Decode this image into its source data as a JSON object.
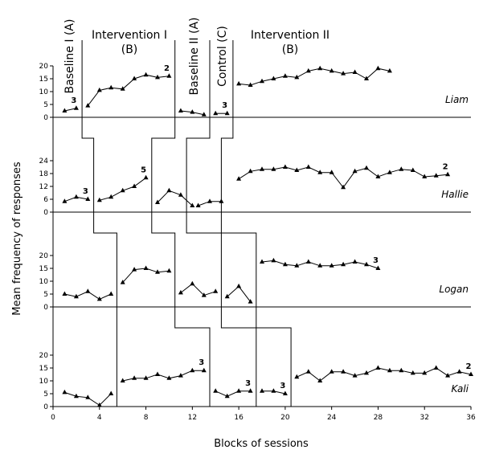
{
  "chart_data": {
    "type": "line",
    "xlabel": "Blocks of sessions",
    "ylabel": "Mean frequency of responses",
    "xlim": [
      0,
      36
    ],
    "xticks": [
      0,
      4,
      8,
      12,
      16,
      20,
      24,
      28,
      32,
      36
    ],
    "x_tick_labels": [
      "0",
      "4",
      "8",
      "12",
      "16",
      "20",
      "24",
      "28",
      "32",
      "36"
    ],
    "phase_labels": [
      {
        "line1": "Baseline I (A)",
        "line2": "",
        "rotated": true
      },
      {
        "line1": "Intervention I",
        "line2": "(B)",
        "rotated": false
      },
      {
        "line1": "Baseline II (A)",
        "line2": "",
        "rotated": true
      },
      {
        "line1": "Control (C)",
        "line2": "",
        "rotated": true
      },
      {
        "line1": "Intervention II",
        "line2": "(B)",
        "rotated": false
      }
    ],
    "panels": [
      {
        "name": "Liam",
        "ylim": [
          0,
          20
        ],
        "yticks": [
          0,
          5,
          10,
          15,
          20
        ],
        "y_tick_labels": [
          "0",
          "5",
          "10",
          "15",
          "20"
        ],
        "phase_changes": [
          2.5,
          10.5,
          13.5,
          15.5
        ],
        "segments": [
          {
            "x": [
              1,
              2
            ],
            "y": [
              2.5,
              3.5
            ]
          },
          {
            "x": [
              3,
              4,
              5,
              6,
              7,
              8,
              9,
              10
            ],
            "y": [
              4.5,
              10.5,
              11.5,
              11,
              15,
              16.5,
              15.5,
              16
            ]
          },
          {
            "x": [
              11,
              12,
              13
            ],
            "y": [
              2.5,
              2.0,
              1.0
            ]
          },
          {
            "x": [
              14,
              15
            ],
            "y": [
              1.5,
              1.5
            ]
          },
          {
            "x": [
              16,
              17,
              18,
              19,
              20,
              21,
              22,
              23,
              24,
              25,
              26,
              27,
              28,
              29
            ],
            "y": [
              13,
              12.5,
              14,
              15,
              16,
              15.5,
              18,
              19,
              18,
              17,
              17.5,
              15,
              19,
              18
            ]
          }
        ],
        "annotations": [
          {
            "text": "3",
            "x": 2,
            "y": 3.5
          },
          {
            "text": "2",
            "x": 10,
            "y": 16
          },
          {
            "text": "3",
            "x": 15,
            "y": 1.5
          }
        ]
      },
      {
        "name": "Hallie",
        "ylim": [
          0,
          24
        ],
        "yticks": [
          0,
          6,
          12,
          18,
          24
        ],
        "y_tick_labels": [
          "0",
          "6",
          "12",
          "18",
          "24"
        ],
        "phase_changes": [
          3.5,
          8.5,
          11.5,
          14.5
        ],
        "segments": [
          {
            "x": [
              1,
              2,
              3
            ],
            "y": [
              5,
              7,
              6
            ]
          },
          {
            "x": [
              4,
              5,
              6,
              7,
              8
            ],
            "y": [
              5.5,
              7,
              10,
              12,
              16
            ]
          },
          {
            "x": [
              9,
              10,
              11,
              12
            ],
            "y": [
              4.5,
              10,
              8,
              3
            ]
          },
          {
            "x": [
              12.5,
              13.5,
              14.5
            ],
            "y": [
              3,
              5,
              5
            ]
          },
          {
            "x": [
              16,
              17,
              18,
              19,
              20,
              21,
              22,
              23,
              24,
              25,
              26,
              27,
              28,
              29,
              30,
              31,
              32,
              33,
              34
            ],
            "y": [
              15.5,
              19,
              20,
              20,
              21,
              19.5,
              21,
              18.5,
              18.5,
              11.5,
              19,
              20.5,
              16.5,
              18.5,
              20,
              19.5,
              16.5,
              17,
              17.5
            ]
          }
        ],
        "annotations": [
          {
            "text": "3",
            "x": 3,
            "y": 6
          },
          {
            "text": "5",
            "x": 8,
            "y": 16
          },
          {
            "text": "2",
            "x": 34,
            "y": 17.5
          }
        ]
      },
      {
        "name": "Logan",
        "ylim": [
          0,
          20
        ],
        "yticks": [
          0,
          5,
          10,
          15,
          20
        ],
        "y_tick_labels": [
          "0",
          "5",
          "10",
          "15",
          "20"
        ],
        "phase_changes": [
          5.5,
          10.5,
          14.5,
          17.5
        ],
        "segments": [
          {
            "x": [
              1,
              2,
              3,
              4,
              5
            ],
            "y": [
              5,
              4,
              6,
              3,
              5
            ]
          },
          {
            "x": [
              6,
              7,
              8,
              9,
              10
            ],
            "y": [
              9.5,
              14.5,
              15,
              13.5,
              14
            ]
          },
          {
            "x": [
              11,
              12,
              13,
              14
            ],
            "y": [
              5.5,
              9,
              4.5,
              6
            ]
          },
          {
            "x": [
              15,
              16,
              17
            ],
            "y": [
              4,
              8,
              2
            ]
          },
          {
            "x": [
              18,
              19,
              20,
              21,
              22,
              23,
              24,
              25,
              26,
              27,
              28
            ],
            "y": [
              17.5,
              18,
              16.5,
              16,
              17.5,
              16,
              16,
              16.5,
              17.5,
              16.5,
              15
            ]
          }
        ],
        "annotations": [
          {
            "text": "3",
            "x": 28,
            "y": 15
          }
        ]
      },
      {
        "name": "Kali",
        "ylim": [
          0,
          20
        ],
        "yticks": [
          0,
          5,
          10,
          15,
          20
        ],
        "y_tick_labels": [
          "0",
          "5",
          "10",
          "15",
          "20"
        ],
        "phase_changes": [
          5.5,
          13.5,
          17.5,
          20.5
        ],
        "segments": [
          {
            "x": [
              1,
              2,
              3,
              4,
              5
            ],
            "y": [
              5.5,
              4,
              3.5,
              0.5,
              5
            ]
          },
          {
            "x": [
              6,
              7,
              8,
              9,
              10,
              11,
              12,
              13
            ],
            "y": [
              10,
              11,
              11,
              12.5,
              11,
              12,
              14,
              14
            ]
          },
          {
            "x": [
              14,
              15,
              16,
              17
            ],
            "y": [
              6,
              4,
              6,
              6
            ]
          },
          {
            "x": [
              18,
              19,
              20
            ],
            "y": [
              6,
              6,
              5
            ]
          },
          {
            "x": [
              21,
              22,
              23,
              24,
              25,
              26,
              27,
              28,
              29,
              30,
              31,
              32,
              33,
              34,
              35,
              36
            ],
            "y": [
              11.5,
              13.5,
              10,
              13.5,
              13.5,
              12,
              13,
              15,
              14,
              14,
              13,
              13,
              15,
              12,
              13.5,
              12.5
            ]
          }
        ],
        "annotations": [
          {
            "text": "3",
            "x": 13,
            "y": 14
          },
          {
            "text": "3",
            "x": 17,
            "y": 6
          },
          {
            "text": "3",
            "x": 20,
            "y": 5
          },
          {
            "text": "2",
            "x": 36,
            "y": 12.5
          }
        ]
      }
    ]
  }
}
